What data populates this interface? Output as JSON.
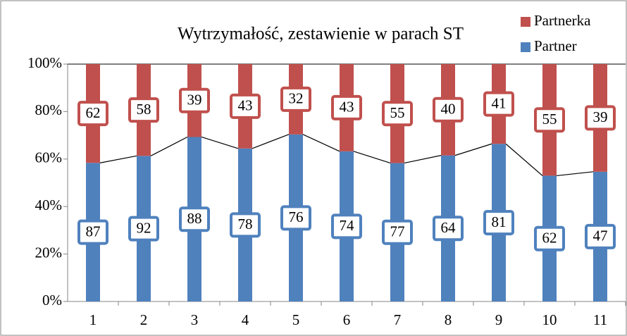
{
  "chart_data": {
    "type": "stacked_bar_100",
    "title": "Wytrzymałość, zestawienie w parach ST",
    "categories": [
      "1",
      "2",
      "3",
      "4",
      "5",
      "6",
      "7",
      "8",
      "9",
      "10",
      "11"
    ],
    "series": [
      {
        "name": "Partner",
        "color": "#4f81bd",
        "values": [
          87,
          92,
          88,
          78,
          76,
          74,
          77,
          64,
          81,
          62,
          47
        ]
      },
      {
        "name": "Partnerka",
        "color": "#c0504d",
        "values": [
          62,
          58,
          39,
          43,
          32,
          43,
          55,
          40,
          41,
          55,
          39
        ]
      }
    ],
    "ylim": [
      0,
      100
    ],
    "yticks": [
      {
        "value": 0,
        "label": "0%"
      },
      {
        "value": 20,
        "label": "20%"
      },
      {
        "value": 40,
        "label": "40%"
      },
      {
        "value": 60,
        "label": "60%"
      },
      {
        "value": 80,
        "label": "80%"
      },
      {
        "value": 100,
        "label": "100%"
      }
    ],
    "grid": false,
    "legend": "top-right"
  }
}
